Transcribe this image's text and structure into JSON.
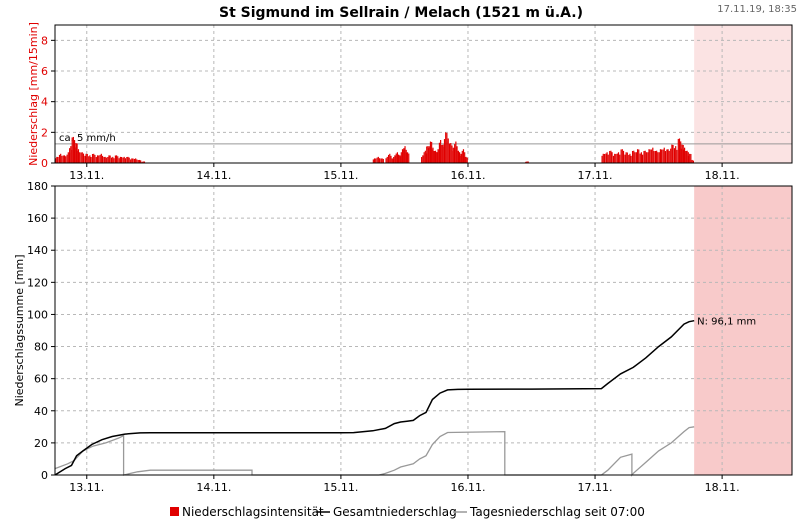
{
  "title": "St Sigmund im Sellrain / Melach (1521 m ü.A.)",
  "timestamp": "17.11.19, 18:35",
  "colors": {
    "intensity": "#e00000",
    "total": "#000000",
    "daily": "#999999",
    "forecast_top": "#fbe3e3",
    "forecast_bottom": "#f8caca",
    "threshold": "#999999"
  },
  "chart_data": [
    {
      "type": "bar",
      "name": "intensity-panel",
      "ylabel": "Niederschlag [mm/15min]",
      "ylim": [
        0,
        9
      ],
      "yticks": [
        0,
        2,
        4,
        6,
        8
      ],
      "xlim": [
        12.75,
        18.55
      ],
      "xticks": [
        13,
        14,
        15,
        16,
        17,
        18
      ],
      "xtick_labels": [
        "13.11.",
        "14.11.",
        "15.11.",
        "16.11.",
        "17.11.",
        "18.11."
      ],
      "forecast_start": 17.78,
      "threshold": {
        "value": 1.25,
        "label": "ca. 5 mm/h"
      },
      "bar_width_days": 0.0104,
      "bursts": [
        {
          "x": [
            12.76,
            12.79,
            12.82,
            12.85,
            12.87,
            12.89,
            12.91,
            12.93,
            12.96,
            12.99,
            13.02,
            13.05,
            13.08,
            13.11,
            13.14,
            13.17,
            13.2,
            13.23,
            13.26,
            13.29,
            13.32,
            13.35,
            13.38,
            13.41,
            13.44
          ],
          "y": [
            0.4,
            0.6,
            0.5,
            0.7,
            1.1,
            1.7,
            1.3,
            0.9,
            0.7,
            0.6,
            0.5,
            0.6,
            0.5,
            0.6,
            0.4,
            0.5,
            0.4,
            0.5,
            0.4,
            0.4,
            0.4,
            0.3,
            0.3,
            0.2,
            0.1
          ]
        },
        {
          "x": [
            15.26,
            15.29,
            15.32
          ],
          "y": [
            0.3,
            0.4,
            0.3
          ]
        },
        {
          "x": [
            15.36,
            15.38,
            15.4,
            15.42,
            15.44,
            15.46,
            15.48,
            15.5,
            15.52
          ],
          "y": [
            0.4,
            0.6,
            0.3,
            0.5,
            0.7,
            0.5,
            0.9,
            1.1,
            0.7
          ]
        },
        {
          "x": [
            15.64,
            15.66,
            15.68,
            15.7,
            15.72,
            15.74,
            15.76,
            15.78,
            15.8,
            15.82,
            15.84,
            15.86,
            15.88,
            15.9,
            15.92,
            15.94,
            15.96,
            15.98
          ],
          "y": [
            0.5,
            0.8,
            1.1,
            1.4,
            1.0,
            0.8,
            0.9,
            1.5,
            1.2,
            2.0,
            1.6,
            1.3,
            1.0,
            1.4,
            0.8,
            0.6,
            0.9,
            0.4
          ]
        },
        {
          "x": [
            16.46
          ],
          "y": [
            0.1
          ]
        },
        {
          "x": [
            17.06,
            17.09,
            17.12,
            17.15,
            17.18,
            17.21,
            17.24,
            17.27,
            17.3,
            17.33,
            17.36,
            17.39,
            17.42,
            17.45,
            17.48,
            17.51,
            17.54,
            17.57,
            17.6,
            17.63,
            17.66,
            17.68,
            17.7,
            17.72,
            17.74,
            17.76
          ],
          "y": [
            0.6,
            0.7,
            0.8,
            0.6,
            0.7,
            0.9,
            0.7,
            0.6,
            0.8,
            0.9,
            0.7,
            0.8,
            0.9,
            1.0,
            0.8,
            0.9,
            1.0,
            0.9,
            1.2,
            1.1,
            1.6,
            1.2,
            1.0,
            0.8,
            0.6,
            0.2
          ]
        }
      ]
    },
    {
      "type": "line",
      "name": "sum-panel",
      "ylabel": "Niederschlagssumme [mm]",
      "ylim": [
        0,
        180
      ],
      "yticks": [
        0,
        20,
        40,
        60,
        80,
        100,
        120,
        140,
        160,
        180
      ],
      "xlim": [
        12.75,
        18.55
      ],
      "xticks": [
        13,
        14,
        15,
        16,
        17,
        18
      ],
      "xtick_labels": [
        "13.11.",
        "14.11.",
        "15.11.",
        "16.11.",
        "17.11.",
        "18.11."
      ],
      "forecast_start": 17.78,
      "annotation": {
        "text": "N: 96,1 mm",
        "x": 17.78,
        "y": 96.1
      },
      "series": [
        {
          "name": "Gesamtniederschlag",
          "x": [
            12.75,
            12.83,
            12.88,
            12.92,
            12.97,
            13.04,
            13.12,
            13.2,
            13.3,
            13.42,
            13.5,
            13.7,
            14.0,
            15.0,
            15.1,
            15.25,
            15.35,
            15.42,
            15.47,
            15.52,
            15.57,
            15.62,
            15.67,
            15.72,
            15.78,
            15.84,
            15.92,
            16.0,
            16.5,
            17.05,
            17.1,
            17.2,
            17.3,
            17.4,
            17.5,
            17.6,
            17.7,
            17.74,
            17.78
          ],
          "values": [
            0,
            4,
            6,
            12,
            15,
            19,
            22,
            24,
            25.5,
            26.2,
            26.3,
            26.3,
            26.3,
            26.3,
            26.4,
            27.5,
            29,
            32,
            33,
            33.5,
            34,
            37,
            39,
            47,
            51,
            53,
            53.3,
            53.4,
            53.5,
            53.8,
            57,
            63,
            67,
            73,
            80,
            86,
            94,
            95.5,
            96.1
          ]
        },
        {
          "name": "Tagesniederschlag seit 07:00",
          "x": [
            12.75,
            12.85,
            12.9,
            12.97,
            13.05,
            13.15,
            13.25,
            13.29,
            13.29,
            13.4,
            13.5,
            13.55,
            14.0,
            14.3,
            14.3,
            15.3,
            15.35,
            15.42,
            15.47,
            15.52,
            15.57,
            15.62,
            15.67,
            15.72,
            15.78,
            15.84,
            16.29,
            16.29,
            17.05,
            17.1,
            17.2,
            17.29,
            17.29,
            17.3,
            17.4,
            17.5,
            17.6,
            17.7,
            17.74,
            17.78
          ],
          "values": [
            4,
            7,
            9,
            15,
            18,
            20,
            23,
            24.5,
            0,
            2,
            3,
            3,
            3,
            3,
            0,
            0,
            1,
            3,
            5,
            6,
            7,
            10,
            12,
            19,
            24,
            26.5,
            27,
            0,
            0,
            3,
            11,
            13,
            0,
            1,
            8,
            15,
            20,
            27,
            29.5,
            30
          ]
        }
      ]
    }
  ],
  "legend": [
    {
      "label": "Niederschlagsintensität",
      "kind": "square",
      "color": "#e00000"
    },
    {
      "label": "Gesamtniederschlag",
      "kind": "line",
      "color": "#000000"
    },
    {
      "label": "Tagesniederschlag seit 07:00",
      "kind": "line",
      "color": "#999999"
    }
  ]
}
